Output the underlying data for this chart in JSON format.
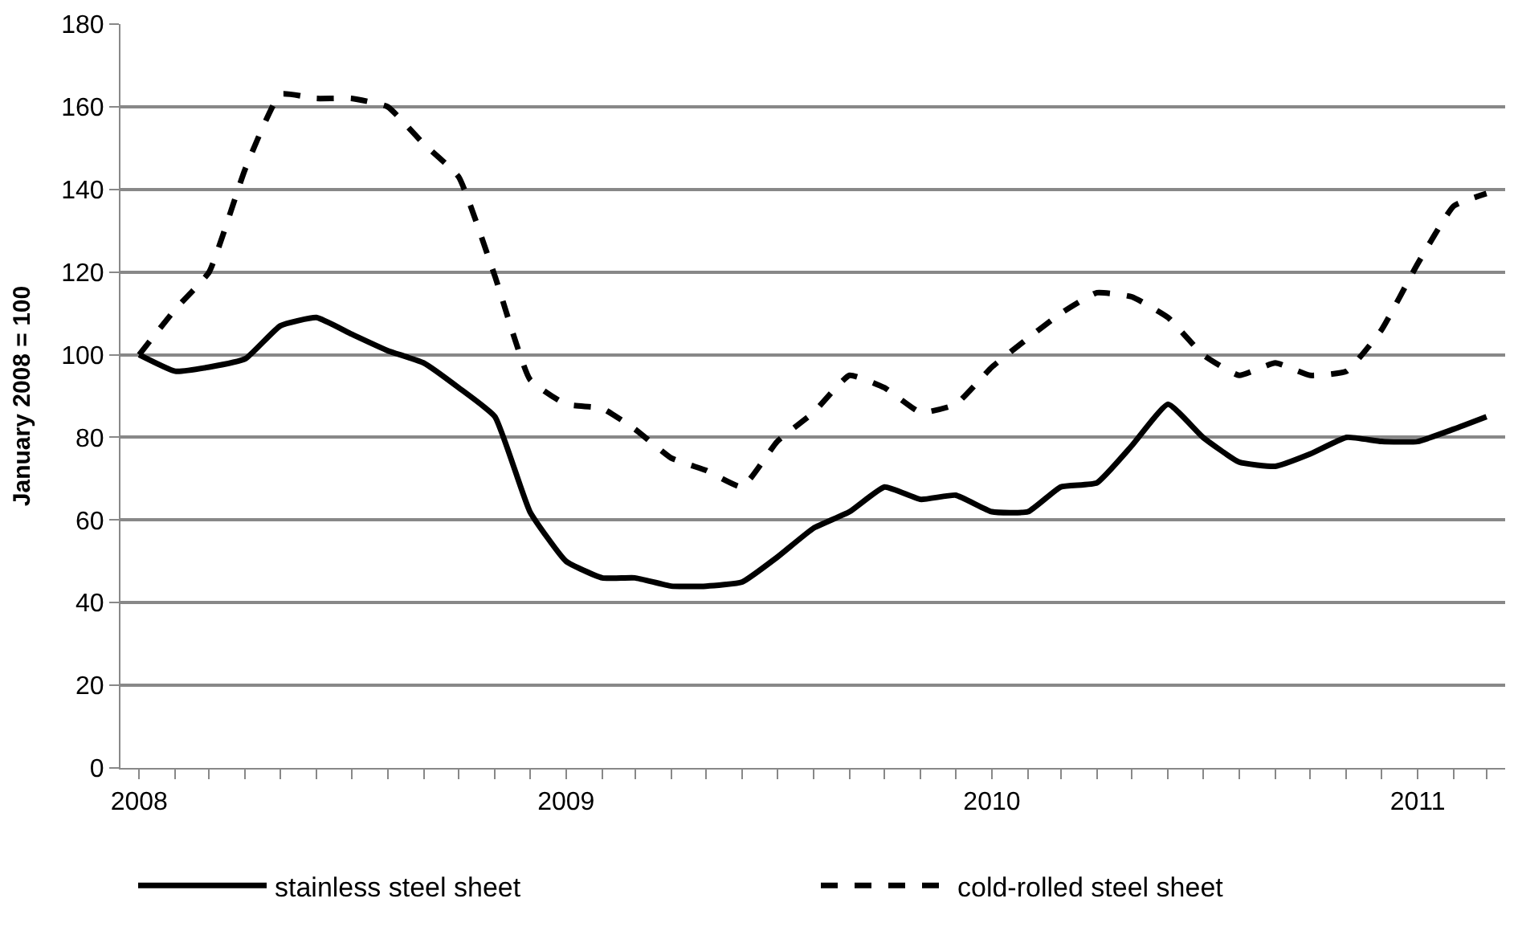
{
  "chart_data": {
    "type": "line",
    "ylabel": "January 2008 = 100",
    "x": [
      "2008-01",
      "2008-02",
      "2008-03",
      "2008-04",
      "2008-05",
      "2008-06",
      "2008-07",
      "2008-08",
      "2008-09",
      "2008-10",
      "2008-11",
      "2008-12",
      "2009-01",
      "2009-02",
      "2009-03",
      "2009-04",
      "2009-05",
      "2009-06",
      "2009-07",
      "2009-08",
      "2009-09",
      "2009-10",
      "2009-11",
      "2009-12",
      "2010-01",
      "2010-02",
      "2010-03",
      "2010-04",
      "2010-05",
      "2010-06",
      "2010-07",
      "2010-08",
      "2010-09",
      "2010-10",
      "2010-11",
      "2010-12",
      "2011-01",
      "2011-02",
      "2011-03"
    ],
    "series": [
      {
        "name": "stainless steel sheet",
        "color": "#000000",
        "line_style": "solid",
        "values": [
          100,
          96,
          97,
          99,
          107,
          109,
          105,
          101,
          98,
          92,
          85,
          62,
          50,
          46,
          46,
          44,
          44,
          45,
          51,
          58,
          62,
          68,
          65,
          66,
          62,
          62,
          68,
          69,
          78,
          88,
          80,
          74,
          73,
          76,
          80,
          79,
          79,
          82,
          85
        ]
      },
      {
        "name": "cold-rolled steel sheet",
        "color": "#000000",
        "line_style": "dashed",
        "values": [
          100,
          111,
          120,
          145,
          163,
          162,
          162,
          160,
          151,
          143,
          119,
          94,
          88,
          87,
          82,
          75,
          72,
          68,
          79,
          86,
          95,
          92,
          86,
          88,
          97,
          104,
          110,
          115,
          114,
          109,
          100,
          95,
          98,
          95,
          96,
          106,
          122,
          136,
          139
        ]
      }
    ],
    "xlim": [
      "2007-12-16",
      "2011-03-17"
    ],
    "xticks": [
      {
        "value": "2008-01-01",
        "label": "2008"
      },
      {
        "value": "2009-01-01",
        "label": "2009"
      },
      {
        "value": "2010-01-01",
        "label": "2010"
      },
      {
        "value": "2011-01-01",
        "label": "2011"
      }
    ],
    "ylim": [
      0,
      180
    ],
    "yticks": [
      0,
      20,
      40,
      60,
      80,
      100,
      120,
      140,
      160,
      180
    ],
    "grid": "y",
    "legend": "bottom",
    "marker": "none"
  }
}
